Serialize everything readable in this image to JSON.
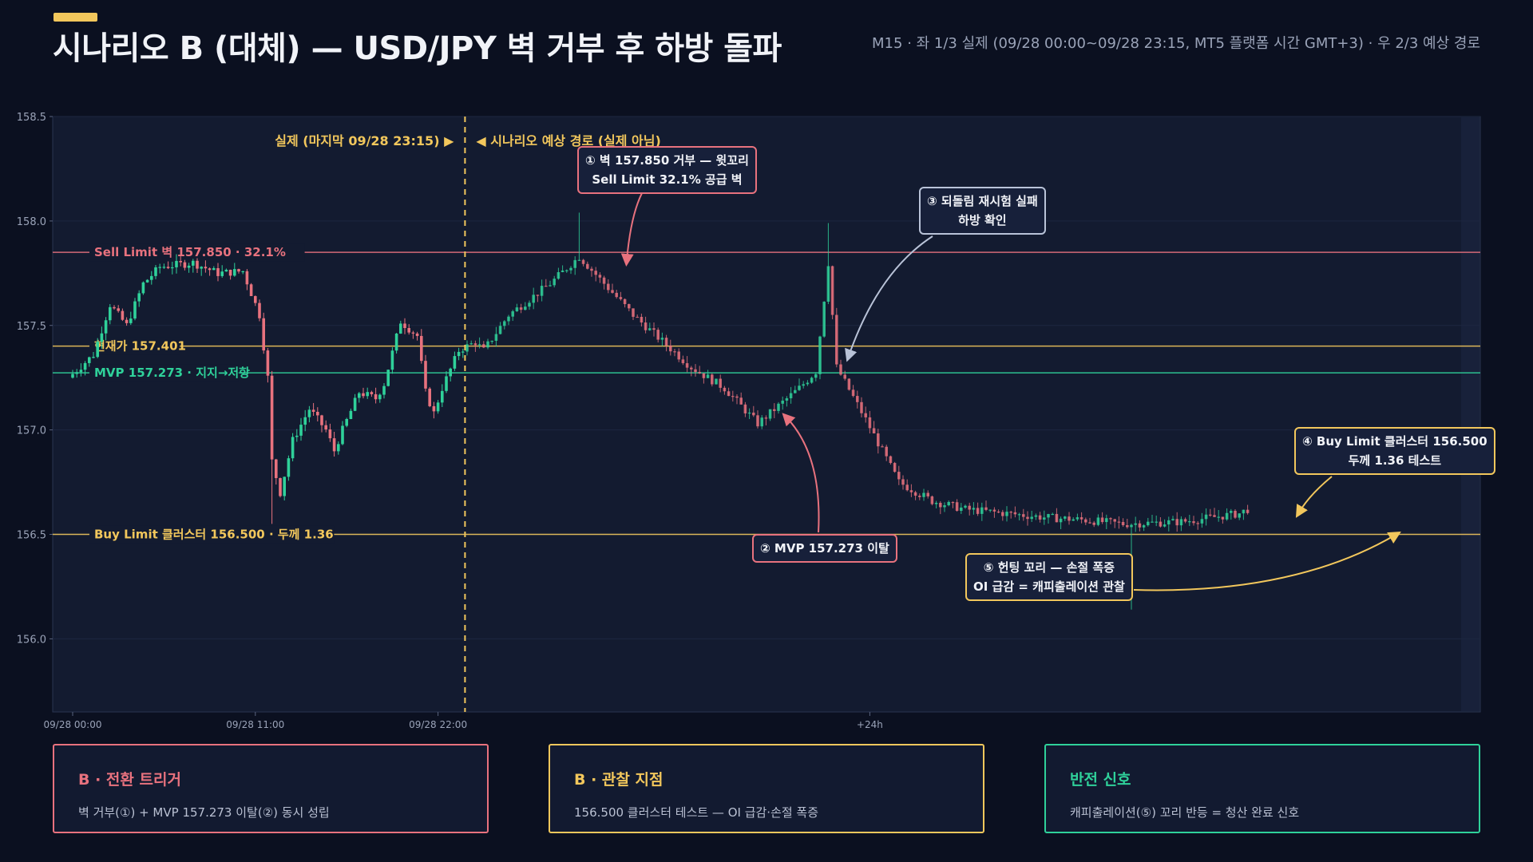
{
  "header": {
    "title": "시나리오 B (대체) — USD/JPY 벽 거부 후 하방 돌파",
    "subtitle": "M15 · 좌 1/3 실제 (09/28 00:00~09/28 23:15, MT5 플랫폼 시간 GMT+3) · 우 2/3 예상 경로"
  },
  "chart_data": {
    "type": "candlestick",
    "symbol": "USD/JPY",
    "timeframe": "M15",
    "ylim": [
      155.65,
      158.5
    ],
    "y_ticks": [
      "158.5",
      "158.0",
      "157.5",
      "157.0",
      "156.5",
      "156.0"
    ],
    "y_tick_values": [
      158.5,
      158.0,
      157.5,
      157.0,
      156.5,
      156.0
    ],
    "x_tick_labels": [
      "09/28 00:00",
      "09/28 11:00",
      "09/28 22:00",
      "+24h"
    ],
    "x_tick_bars": [
      0,
      44,
      88,
      192
    ],
    "total_bars": 284,
    "split_bar": 94.5,
    "split_labels": {
      "actual": "실제 (마지막 09/28 23:15) ▶",
      "projected": "◀ 시나리오 예상 경로 (실제 아님)"
    },
    "levels": [
      {
        "label": "Sell Limit 벽 157.850 · 32.1%",
        "value": 157.85,
        "color": "#e8727e"
      },
      {
        "label": "현재가 157.401",
        "value": 157.401,
        "color": "#f2c75c"
      },
      {
        "label": "MVP 157.273 · 지지→저항",
        "value": 157.273,
        "color": "#2fd19a"
      },
      {
        "label": "Buy Limit 클러스터 156.500 · 두께 1.36",
        "value": 156.5,
        "color": "#f2c75c"
      }
    ],
    "path_anchors": [
      [
        0,
        157.25
      ],
      [
        6,
        157.36
      ],
      [
        10,
        157.6
      ],
      [
        14,
        157.5
      ],
      [
        18,
        157.7
      ],
      [
        22,
        157.78
      ],
      [
        30,
        157.8
      ],
      [
        36,
        157.75
      ],
      [
        42,
        157.76
      ],
      [
        46,
        157.55
      ],
      [
        48,
        157.25
      ],
      [
        49,
        156.85
      ],
      [
        51,
        156.7
      ],
      [
        54,
        156.95
      ],
      [
        58,
        157.1
      ],
      [
        62,
        157.0
      ],
      [
        64,
        156.9
      ],
      [
        66,
        157.0
      ],
      [
        70,
        157.18
      ],
      [
        74,
        157.15
      ],
      [
        76,
        157.22
      ],
      [
        80,
        157.52
      ],
      [
        84,
        157.45
      ],
      [
        86,
        157.18
      ],
      [
        88,
        157.08
      ],
      [
        90,
        157.2
      ],
      [
        94,
        157.38
      ],
      [
        98,
        157.42
      ],
      [
        100,
        157.38
      ],
      [
        106,
        157.55
      ],
      [
        116,
        157.7
      ],
      [
        123,
        157.83
      ],
      [
        136,
        157.55
      ],
      [
        150,
        157.3
      ],
      [
        158,
        157.2
      ],
      [
        166,
        157.03
      ],
      [
        176,
        157.2
      ],
      [
        180,
        157.28
      ],
      [
        183,
        157.8
      ],
      [
        185,
        157.3
      ],
      [
        192,
        157.05
      ],
      [
        200,
        156.75
      ],
      [
        208,
        156.66
      ],
      [
        216,
        156.62
      ],
      [
        226,
        156.6
      ],
      [
        236,
        156.58
      ],
      [
        244,
        156.57
      ],
      [
        254,
        156.55
      ],
      [
        268,
        156.56
      ],
      [
        282,
        156.6
      ],
      [
        284,
        156.62
      ]
    ],
    "spikes": [
      {
        "bar": 122,
        "high": 158.04
      },
      {
        "bar": 182,
        "high": 157.99
      },
      {
        "bar": 255,
        "low": 156.14
      },
      {
        "bar": 48,
        "low": 156.55
      }
    ]
  },
  "annotations": {
    "a1": {
      "line1": "① 벽 157.850 거부 — 윗꼬리",
      "line2": "Sell Limit 32.1% 공급 벽",
      "color": "#e8727e"
    },
    "a2": {
      "line1": "② MVP 157.273 이탈",
      "color": "#e8727e"
    },
    "a3": {
      "line1": "③ 되돌림 재시험 실패",
      "line2": "하방 확인",
      "color": "#b9c3d8"
    },
    "a4": {
      "line1": "④ Buy Limit 클러스터 156.500",
      "line2": "두께 1.36 테스트",
      "color": "#f2c75c"
    },
    "a5": {
      "line1": "⑤ 헌팅 꼬리 — 손절 폭증",
      "line2": "OI 급감 = 캐피출레이션 관찰",
      "color": "#f2c75c"
    }
  },
  "cards": [
    {
      "title": "B · 전환 트리거",
      "body": "벽 거부(①) + MVP 157.273 이탈(②) 동시 성립",
      "color": "#e8727e"
    },
    {
      "title": "B · 관찰 지점",
      "body": "156.500 클러스터 테스트 — OI 급감·손절 폭증",
      "color": "#f2c75c"
    },
    {
      "title": "반전 신호",
      "body": "캐피출레이션(⑤) 꼬리 반등 = 청산 완료 신호",
      "color": "#2fd19a"
    }
  ],
  "colors": {
    "up": "#2fd19a",
    "down": "#e8727e",
    "grid": "#1d2740",
    "plot_bg": "#131b30"
  }
}
